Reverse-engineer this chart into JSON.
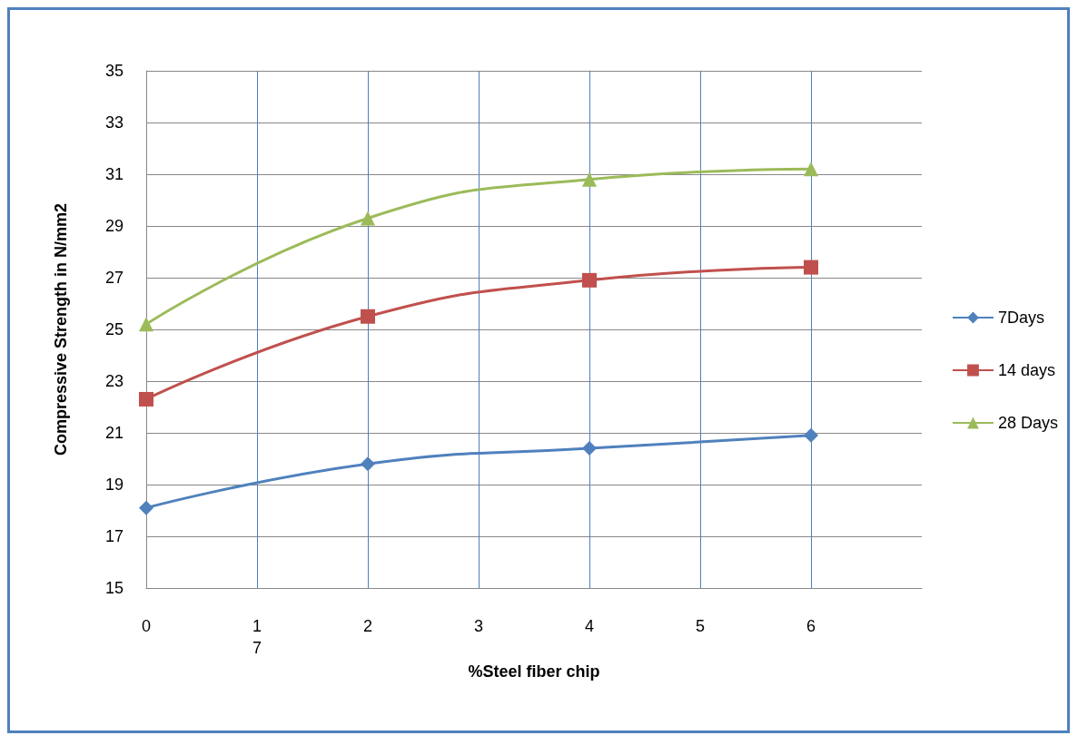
{
  "chart_data": {
    "type": "line",
    "xlabel": "%Steel fiber chip",
    "ylabel": "Compressive Strength in N/mm2",
    "xlim": [
      0,
      7
    ],
    "xticks": [
      0,
      {
        "value": 1,
        "label": "1\n7"
      },
      2,
      3,
      4,
      5,
      6
    ],
    "ylim": [
      15,
      35
    ],
    "yticks": [
      15,
      17,
      19,
      21,
      23,
      25,
      27,
      29,
      31,
      33,
      35
    ],
    "grid": true,
    "legend": "right",
    "series": [
      {
        "name": "7Days",
        "color": "#4f81bd",
        "marker": "diamond",
        "x": [
          0,
          2,
          4,
          6
        ],
        "values": [
          18.1,
          19.8,
          20.4,
          20.9
        ]
      },
      {
        "name": "14 days",
        "color": "#c0504d",
        "marker": "square",
        "x": [
          0,
          2,
          4,
          6
        ],
        "values": [
          22.3,
          25.5,
          26.9,
          27.4
        ]
      },
      {
        "name": "28 Days",
        "color": "#9bbb59",
        "marker": "triangle",
        "x": [
          0,
          2,
          4,
          6
        ],
        "values": [
          25.2,
          29.3,
          30.8,
          31.2
        ]
      }
    ]
  }
}
